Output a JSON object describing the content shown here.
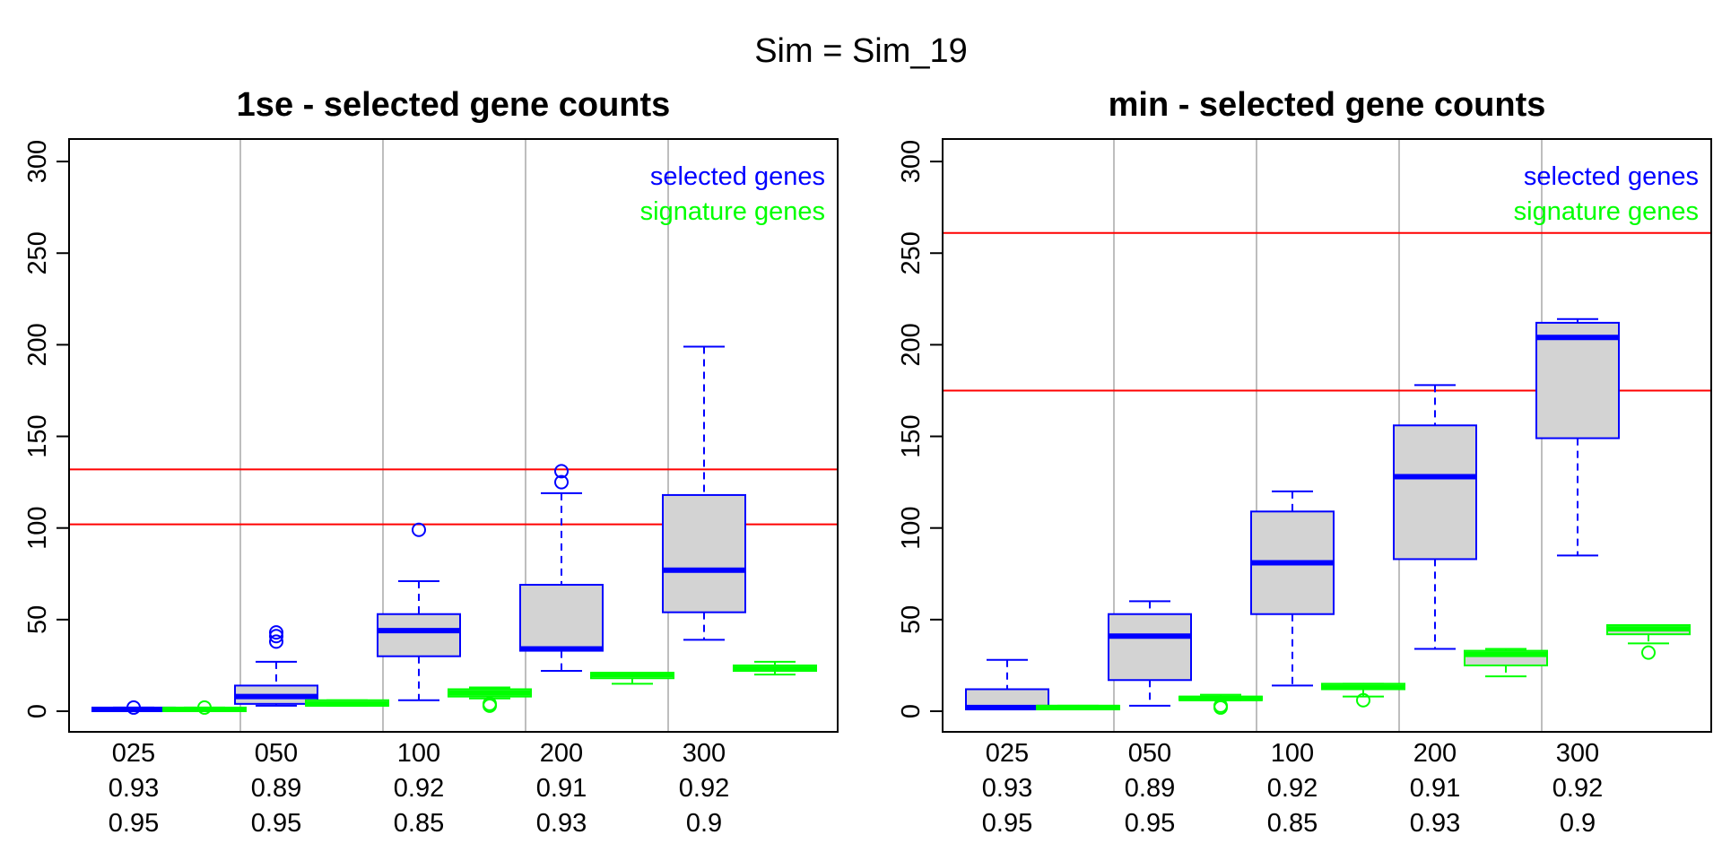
{
  "suptitle": "Sim = Sim_19",
  "colors": {
    "selected": "#0000ff",
    "signature": "#00ff00",
    "box_fill": "#d3d3d3",
    "ref_line": "#ff0000",
    "separator": "#bebebe"
  },
  "chart_data": [
    {
      "type": "boxplot",
      "title": "1se - selected gene counts",
      "ylim": [
        0,
        300
      ],
      "yticks": [
        0,
        50,
        100,
        150,
        200,
        250,
        300
      ],
      "legend": {
        "position": "top-right",
        "entries": [
          "selected genes",
          "signature genes"
        ]
      },
      "groups": [
        {
          "label": "025",
          "line2": "0.93",
          "line3": "0.95"
        },
        {
          "label": "050",
          "line2": "0.89",
          "line3": "0.95"
        },
        {
          "label": "100",
          "line2": "0.92",
          "line3": "0.85"
        },
        {
          "label": "200",
          "line2": "0.91",
          "line3": "0.93"
        },
        {
          "label": "300",
          "line2": "0.92",
          "line3": "0.9"
        }
      ],
      "hlines": [
        102,
        132
      ],
      "boxes": [
        {
          "group": 0,
          "series": "selected",
          "min": 0,
          "q1": 0,
          "median": 1,
          "q3": 2,
          "max": 2,
          "outliers": [
            2
          ]
        },
        {
          "group": 0,
          "series": "signature",
          "min": 0,
          "q1": 0,
          "median": 1,
          "q3": 2,
          "max": 2,
          "outliers": [
            2
          ]
        },
        {
          "group": 1,
          "series": "selected",
          "min": 3,
          "q1": 4,
          "median": 8,
          "q3": 14,
          "max": 27,
          "outliers": [
            38,
            41,
            43
          ]
        },
        {
          "group": 1,
          "series": "signature",
          "min": 3,
          "q1": 3,
          "median": 4,
          "q3": 6,
          "max": 6,
          "outliers": []
        },
        {
          "group": 2,
          "series": "selected",
          "min": 6,
          "q1": 30,
          "median": 44,
          "q3": 53,
          "max": 71,
          "outliers": [
            99
          ]
        },
        {
          "group": 2,
          "series": "signature",
          "min": 7,
          "q1": 8,
          "median": 10,
          "q3": 12,
          "max": 13,
          "outliers": [
            3,
            4
          ]
        },
        {
          "group": 3,
          "series": "selected",
          "min": 22,
          "q1": 33,
          "median": 34,
          "q3": 69,
          "max": 119,
          "outliers": [
            125,
            131
          ]
        },
        {
          "group": 3,
          "series": "signature",
          "min": 15,
          "q1": 18,
          "median": 20,
          "q3": 21,
          "max": 21,
          "outliers": []
        },
        {
          "group": 4,
          "series": "selected",
          "min": 39,
          "q1": 54,
          "median": 77,
          "q3": 118,
          "max": 199,
          "outliers": []
        },
        {
          "group": 4,
          "series": "signature",
          "min": 20,
          "q1": 22,
          "median": 23,
          "q3": 25,
          "max": 27,
          "outliers": []
        }
      ]
    },
    {
      "type": "boxplot",
      "title": "min - selected gene counts",
      "ylim": [
        0,
        300
      ],
      "yticks": [
        0,
        50,
        100,
        150,
        200,
        250,
        300
      ],
      "legend": {
        "position": "top-right",
        "entries": [
          "selected genes",
          "signature genes"
        ]
      },
      "groups": [
        {
          "label": "025",
          "line2": "0.93",
          "line3": "0.95"
        },
        {
          "label": "050",
          "line2": "0.89",
          "line3": "0.95"
        },
        {
          "label": "100",
          "line2": "0.92",
          "line3": "0.85"
        },
        {
          "label": "200",
          "line2": "0.91",
          "line3": "0.93"
        },
        {
          "label": "300",
          "line2": "0.92",
          "line3": "0.9"
        }
      ],
      "hlines": [
        175,
        261
      ],
      "boxes": [
        {
          "group": 0,
          "series": "selected",
          "min": 1,
          "q1": 1,
          "median": 2,
          "q3": 12,
          "max": 28,
          "outliers": []
        },
        {
          "group": 0,
          "series": "signature",
          "min": 1,
          "q1": 1,
          "median": 2,
          "q3": 3,
          "max": 3,
          "outliers": []
        },
        {
          "group": 1,
          "series": "selected",
          "min": 3,
          "q1": 17,
          "median": 41,
          "q3": 53,
          "max": 60,
          "outliers": []
        },
        {
          "group": 1,
          "series": "signature",
          "min": 6,
          "q1": 6,
          "median": 7,
          "q3": 8,
          "max": 9,
          "outliers": [
            2,
            3
          ]
        },
        {
          "group": 2,
          "series": "selected",
          "min": 14,
          "q1": 53,
          "median": 81,
          "q3": 109,
          "max": 120,
          "outliers": []
        },
        {
          "group": 2,
          "series": "signature",
          "min": 8,
          "q1": 12,
          "median": 13,
          "q3": 15,
          "max": 15,
          "outliers": [
            6
          ]
        },
        {
          "group": 3,
          "series": "selected",
          "min": 34,
          "q1": 83,
          "median": 128,
          "q3": 156,
          "max": 178,
          "outliers": []
        },
        {
          "group": 3,
          "series": "signature",
          "min": 19,
          "q1": 25,
          "median": 31,
          "q3": 33,
          "max": 34,
          "outliers": []
        },
        {
          "group": 4,
          "series": "selected",
          "min": 85,
          "q1": 149,
          "median": 204,
          "q3": 212,
          "max": 214,
          "outliers": []
        },
        {
          "group": 4,
          "series": "signature",
          "min": 37,
          "q1": 42,
          "median": 45,
          "q3": 47,
          "max": 47,
          "outliers": [
            32
          ]
        }
      ]
    }
  ]
}
